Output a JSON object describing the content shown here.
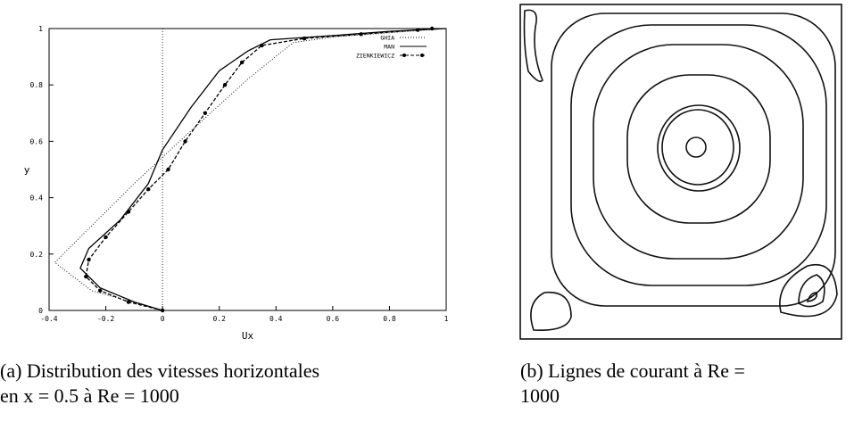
{
  "chart_data": {
    "type": "line",
    "xlabel": "Ux",
    "ylabel": "y",
    "xlim": [
      -0.4,
      1
    ],
    "xticks": [
      -0.4,
      -0.2,
      0,
      0.2,
      0.4,
      0.6,
      0.8,
      1
    ],
    "ylim": [
      0,
      1
    ],
    "yticks": [
      0,
      0.2,
      0.4,
      0.6,
      0.8,
      1
    ],
    "grid": false,
    "legend": "top-right",
    "series": [
      {
        "name": "GHIA",
        "color": "#000000",
        "dash": "dotted",
        "marker": false,
        "x": [
          0,
          -0.25,
          -0.38,
          -0.1,
          0.06,
          0.3,
          0.46,
          0.6,
          0.8,
          1
        ],
        "values": [
          0,
          0.07,
          0.17,
          0.45,
          0.6,
          0.82,
          0.95,
          0.97,
          0.985,
          1
        ]
      },
      {
        "name": "MAN",
        "color": "#000000",
        "dash": "solid",
        "marker": false,
        "x": [
          0,
          -0.1,
          -0.22,
          -0.29,
          -0.26,
          -0.15,
          -0.05,
          0,
          0.1,
          0.2,
          0.3,
          0.38,
          0.6,
          0.8,
          1
        ],
        "values": [
          0,
          0.03,
          0.08,
          0.15,
          0.22,
          0.32,
          0.45,
          0.57,
          0.72,
          0.85,
          0.92,
          0.96,
          0.975,
          0.99,
          1
        ]
      },
      {
        "name": "ZIENKIEWICZ",
        "color": "#000000",
        "dash": "dashed",
        "marker": true,
        "x": [
          0,
          -0.12,
          -0.22,
          -0.27,
          -0.26,
          -0.2,
          -0.12,
          -0.05,
          0.02,
          0.08,
          0.15,
          0.22,
          0.28,
          0.35,
          0.5,
          0.7,
          0.9,
          0.95
        ],
        "values": [
          0,
          0.03,
          0.07,
          0.12,
          0.18,
          0.26,
          0.35,
          0.43,
          0.5,
          0.6,
          0.7,
          0.8,
          0.88,
          0.94,
          0.965,
          0.98,
          0.995,
          1
        ]
      }
    ]
  },
  "captions": [
    {
      "lines": [
        "(a) Distribution des vitesses horizontales",
        "en x = 0.5 à Re = 1000"
      ]
    },
    {
      "lines": [
        "(b) Lignes de courant à Re =",
        "1000"
      ]
    }
  ]
}
